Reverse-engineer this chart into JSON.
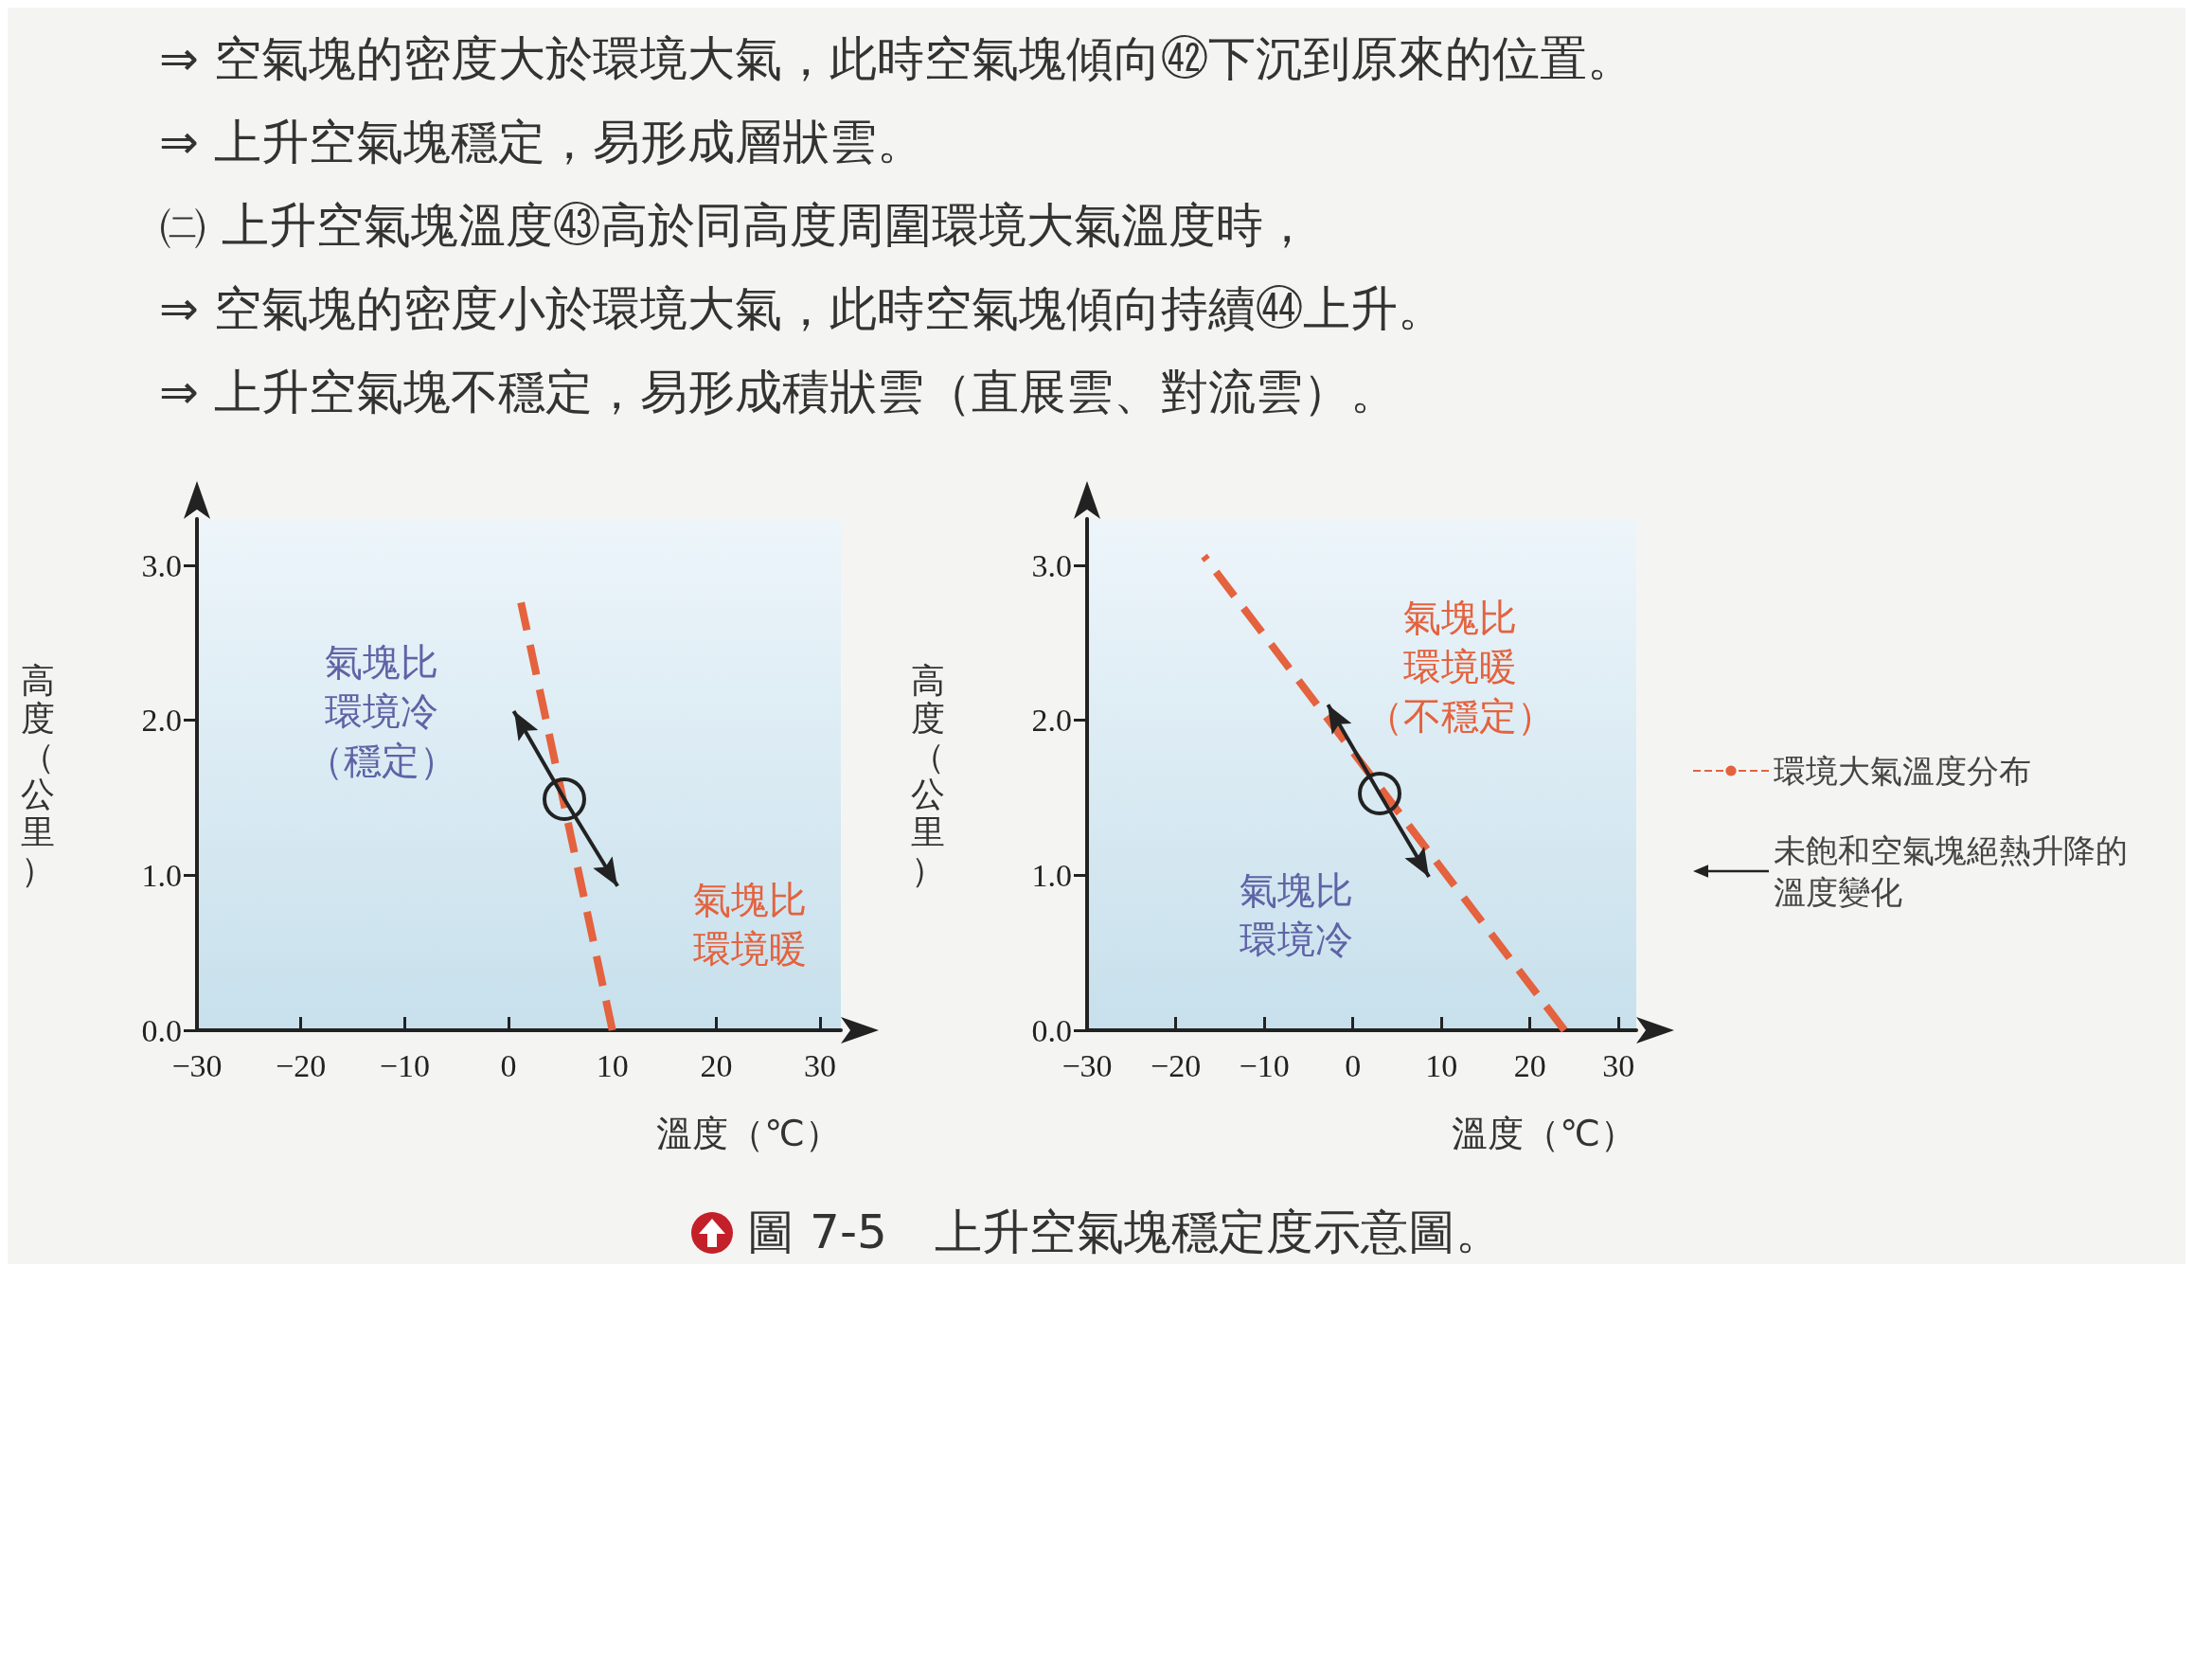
{
  "chart_data": [
    {
      "type": "other",
      "annotations": [
        "⇒ 空氣塊的密度大於環境大氣，此時空氣塊傾向㊷下沉到原來的位置。",
        "⇒ 上升空氣塊穩定，易形成層狀雲。",
        "㈡ 上升空氣塊溫度㊸高於同高度周圍環境大氣溫度時，",
        "⇒ 空氣塊的密度小於環境大氣，此時空氣塊傾向持續㊹上升。",
        "⇒ 上升空氣塊不穩定，易形成積狀雲（直展雲、對流雲）。"
      ]
    },
    {
      "type": "line",
      "xlabel": "溫度（℃）",
      "ylabel": "高度（公里）",
      "xlim": [
        -30,
        32
      ],
      "ylim": [
        0,
        3.3
      ],
      "xticks": [
        {
          "value": -30,
          "label": "−30"
        },
        {
          "value": -20,
          "label": "−20"
        },
        {
          "value": -10,
          "label": "−10"
        },
        0,
        10,
        20,
        30
      ],
      "yticks": [
        {
          "value": 0,
          "label": "0.0"
        },
        {
          "value": 1,
          "label": "1.0"
        },
        {
          "value": 2,
          "label": "2.0"
        },
        {
          "value": 3,
          "label": "3.0"
        }
      ],
      "series": [
        {
          "color": "#e4623e",
          "line_style": "dashed",
          "x": [
            10,
            1.2
          ],
          "values": [
            0,
            2.76
          ]
        },
        {
          "color": "#222222",
          "x": [
            0.5,
            5.4,
            10.5
          ],
          "values": [
            2.06,
            1.49,
            0.93
          ]
        }
      ],
      "annotations": [
        "氣塊比環境冷（穩定）",
        "氣塊比環境暖"
      ],
      "legend": false,
      "grid": false
    },
    {
      "type": "line",
      "xlabel": "溫度（℃）",
      "ylabel": "高度（公里）",
      "xlim": [
        -30,
        32
      ],
      "ylim": [
        0,
        3.3
      ],
      "xticks": [
        {
          "value": -30,
          "label": "−30"
        },
        {
          "value": -20,
          "label": "−20"
        },
        {
          "value": -10,
          "label": "−10"
        },
        0,
        10,
        20,
        30
      ],
      "yticks": [
        {
          "value": 0,
          "label": "0.0"
        },
        {
          "value": 1,
          "label": "1.0"
        },
        {
          "value": 2,
          "label": "2.0"
        },
        {
          "value": 3,
          "label": "3.0"
        }
      ],
      "series": [
        {
          "name": "環境大氣溫度分布",
          "color": "#e4623e",
          "line_style": "dashed",
          "x": [
            23.9,
            -16.8
          ],
          "values": [
            0,
            3.06
          ]
        },
        {
          "name": "未飽和空氣塊絕熱升降的溫度變化",
          "color": "#222222",
          "x": [
            -2.8,
            3.0,
            8.6
          ],
          "values": [
            2.1,
            1.53,
            0.99
          ]
        }
      ],
      "annotations": [
        "氣塊比環境暖（不穩定）",
        "氣塊比環境冷"
      ],
      "legend": "right",
      "grid": false
    },
    {
      "type": "other",
      "annotations": [
        "圖 7-5　上升空氣塊穩定度示意圖。"
      ]
    }
  ]
}
